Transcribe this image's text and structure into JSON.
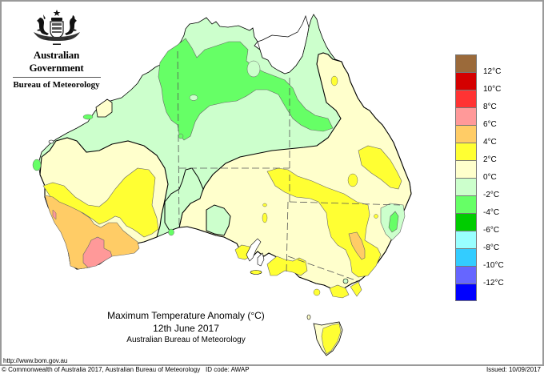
{
  "header": {
    "government": "Australian Government",
    "bureau": "Bureau of Meteorology",
    "crest_icon": "commonwealth-coat-of-arms-icon"
  },
  "title_block": {
    "title": "Maximum Temperature Anomaly (°C)",
    "date": "12th June 2017",
    "source": "Australian Bureau of Meteorology"
  },
  "legend": {
    "swatches": [
      {
        "color": "#9b6a3a",
        "label": ""
      },
      {
        "color": "#d40000",
        "label": "12°C"
      },
      {
        "color": "#ff3333",
        "label": "10°C"
      },
      {
        "color": "#ff9999",
        "label": "8°C"
      },
      {
        "color": "#ffcc66",
        "label": "6°C"
      },
      {
        "color": "#ffff33",
        "label": "4°C"
      },
      {
        "color": "#ffffcc",
        "label": "2°C"
      },
      {
        "color": "#ccffcc",
        "label": "0°C"
      },
      {
        "color": "#66ff66",
        "label": "-2°C"
      },
      {
        "color": "#00cc00",
        "label": "-4°C"
      },
      {
        "color": "#99ffff",
        "label": "-6°C"
      },
      {
        "color": "#33ccff",
        "label": "-8°C"
      },
      {
        "color": "#6666ff",
        "label": "-10°C"
      },
      {
        "color": "#0000ff",
        "label": "-12°C"
      }
    ]
  },
  "footer": {
    "url": "http://www.bom.gov.au",
    "copyright": "© Commonwealth of Australia 2017, Australian Bureau of Meteorology",
    "id_code": "ID code: AWAP",
    "issued": "Issued: 10/09/2017"
  },
  "map": {
    "region": "Australia",
    "variable": "Maximum Temperature Anomaly",
    "unit": "°C",
    "colors": {
      "neg2_to_0": "#ccffcc",
      "neg4_to_neg2": "#66ff66",
      "0_to_2": "#ffffcc",
      "2_to_4": "#ffff33",
      "4_to_6": "#ffcc66",
      "6_to_8": "#ff9999",
      "coast": "#000000",
      "state_border": "#555555"
    }
  }
}
